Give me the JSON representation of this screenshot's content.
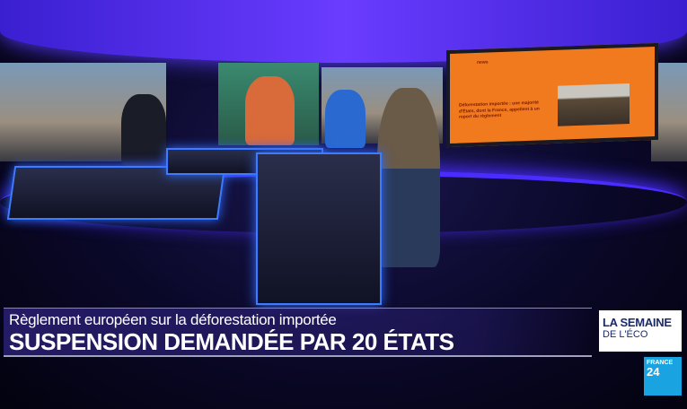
{
  "lower_third": {
    "subtitle": "Règlement européen sur la déforestation importée",
    "headline": "SUSPENSION DEMANDÉE PAR 20 ÉTATS"
  },
  "show_logo": {
    "line1": "LA SEMAINE",
    "line2": "DE L'ÉCO"
  },
  "channel_logo": {
    "line1": "FRANCE",
    "line2": "24"
  },
  "studio_screen": {
    "site": "news",
    "headline": "Déforestation importée : une majorité d'États, dont la France, appellent à un report du règlement"
  },
  "colors": {
    "studio_accent": "#4a2cff",
    "screen_orange": "#f27a1e",
    "france24_blue": "#19a3e0"
  }
}
